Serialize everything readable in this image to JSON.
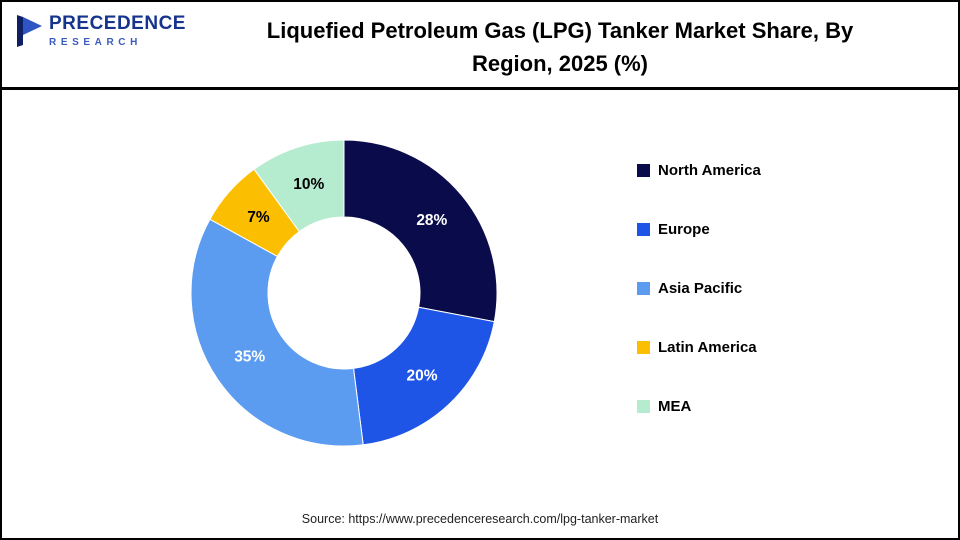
{
  "header": {
    "logo": {
      "name_top": "PRECEDENCE",
      "name_bottom": "RESEARCH",
      "color_dark": "#16338e",
      "color_light": "#3b5bbf"
    },
    "title_lines": [
      "Liquefied Petroleum Gas (LPG) Tanker Market Share, By",
      "Region, 2025 (%)"
    ]
  },
  "chart_data": {
    "type": "pie",
    "subtype": "donut",
    "title": "Liquefied Petroleum Gas (LPG) Tanker Market Share, By Region, 2025 (%)",
    "unit": "%",
    "categories": [
      "North America",
      "Europe",
      "Asia Pacific",
      "Latin America",
      "MEA"
    ],
    "values": [
      28,
      20,
      35,
      7,
      10
    ],
    "labels": [
      "28%",
      "20%",
      "35%",
      "7%",
      "10%"
    ],
    "colors": [
      "#0a0b4b",
      "#1f55e6",
      "#5b9bf0",
      "#fcbe00",
      "#b5ecd0"
    ],
    "label_colors": [
      "#ffffff",
      "#ffffff",
      "#ffffff",
      "#000000",
      "#000000"
    ],
    "start_angle_deg": 0,
    "direction": "clockwise",
    "inner_radius_ratio": 0.5,
    "legend_position": "right"
  },
  "legend": {
    "items": [
      {
        "label": "North America",
        "color": "#0a0b4b"
      },
      {
        "label": "Europe",
        "color": "#1f55e6"
      },
      {
        "label": "Asia Pacific",
        "color": "#5b9bf0"
      },
      {
        "label": "Latin America",
        "color": "#fcbe00"
      },
      {
        "label": "MEA",
        "color": "#b5ecd0"
      }
    ]
  },
  "footer": {
    "source": "Source: https://www.precedenceresearch.com/lpg-tanker-market"
  }
}
